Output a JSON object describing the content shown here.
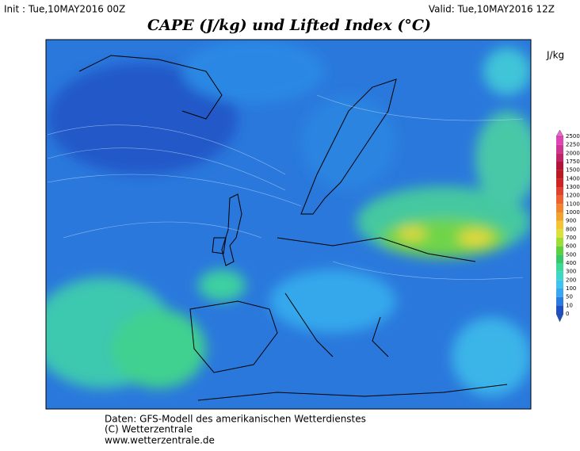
{
  "header": {
    "init": "Init : Tue,10MAY2016 00Z",
    "valid": "Valid: Tue,10MAY2016 12Z",
    "title": "CAPE (J/kg) und Lifted Index (°C)"
  },
  "legend": {
    "unit": "J/kg",
    "levels": [
      {
        "value": 0,
        "color": "#1f4fc0"
      },
      {
        "value": 10,
        "color": "#2a7de0"
      },
      {
        "value": 50,
        "color": "#3aa6f0"
      },
      {
        "value": 100,
        "color": "#40c4ee"
      },
      {
        "value": 200,
        "color": "#3ed6c8"
      },
      {
        "value": 300,
        "color": "#3ed898"
      },
      {
        "value": 400,
        "color": "#36c866"
      },
      {
        "value": 500,
        "color": "#5cd040"
      },
      {
        "value": 600,
        "color": "#9edc3a"
      },
      {
        "value": 700,
        "color": "#dce03a"
      },
      {
        "value": 800,
        "color": "#f2c632"
      },
      {
        "value": 900,
        "color": "#f0a430"
      },
      {
        "value": 1000,
        "color": "#f08430"
      },
      {
        "value": 1100,
        "color": "#ee6230"
      },
      {
        "value": 1200,
        "color": "#e04230"
      },
      {
        "value": 1300,
        "color": "#d02424"
      },
      {
        "value": 1400,
        "color": "#bc1820"
      },
      {
        "value": 1500,
        "color": "#b01438"
      },
      {
        "value": 1750,
        "color": "#c02466"
      },
      {
        "value": 2000,
        "color": "#d03492"
      },
      {
        "value": 2250,
        "color": "#e044b4"
      },
      {
        "value": 2500,
        "color": "#f064d4"
      }
    ]
  },
  "footer": [
    "Daten: GFS-Modell des amerikanischen Wetterdienstes",
    "(C) Wetterzentrale",
    "www.wetterzentrale.de"
  ]
}
